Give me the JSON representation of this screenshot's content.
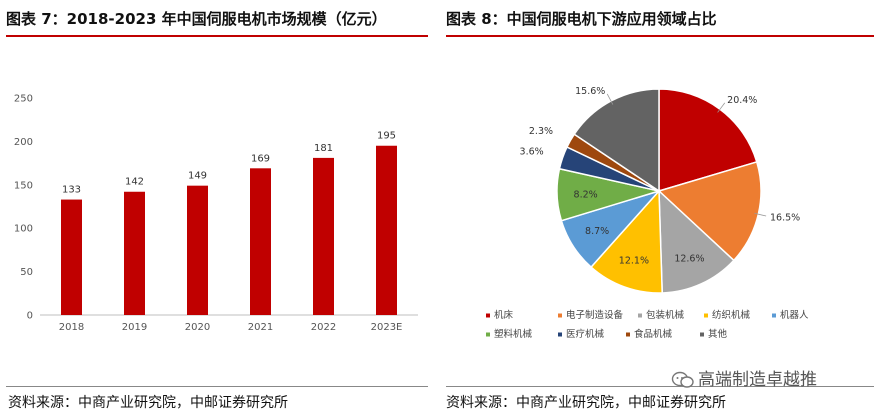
{
  "header": {
    "left_title": "图表 7：2018-2023 年中国伺服电机市场规模（亿元）",
    "right_title": "图表 8：中国伺服电机下游应用领域占比"
  },
  "footer": {
    "left_source": "资料来源：中商产业研究院，中邮证券研究所",
    "right_source": "资料来源：中商产业研究院，中邮证券研究所",
    "watermark": "高端制造卓越推"
  },
  "chart_data": [
    {
      "type": "bar",
      "title": "图表 7：2018-2023 年中国伺服电机市场规模（亿元）",
      "categories": [
        "2018",
        "2019",
        "2020",
        "2021",
        "2022",
        "2023E"
      ],
      "values": [
        133,
        142,
        149,
        169,
        181,
        195
      ],
      "ylim": [
        0,
        250
      ],
      "yticks": [
        0,
        50,
        100,
        150,
        200,
        250
      ],
      "color": "#c00000",
      "grid": false
    },
    {
      "type": "pie",
      "title": "图表 8：中国伺服电机下游应用领域占比",
      "slices": [
        {
          "name": "机床",
          "value": 20.4,
          "label": "20.4%",
          "color": "#c00000"
        },
        {
          "name": "电子制造设备",
          "value": 16.5,
          "label": "16.5%",
          "color": "#ed7d31"
        },
        {
          "name": "包装机械",
          "value": 12.6,
          "label": "12.6%",
          "color": "#a5a5a5"
        },
        {
          "name": "纺织机械",
          "value": 12.1,
          "label": "12.1%",
          "color": "#ffc000"
        },
        {
          "name": "机器人",
          "value": 8.7,
          "label": "8.7%",
          "color": "#5b9bd5"
        },
        {
          "name": "塑料机械",
          "value": 8.2,
          "label": "8.2%",
          "color": "#70ad47"
        },
        {
          "name": "医疗机械",
          "value": 3.6,
          "label": "3.6%",
          "color": "#264478"
        },
        {
          "name": "食品机械",
          "value": 2.3,
          "label": "2.3%",
          "color": "#9e480e"
        },
        {
          "name": "其他",
          "value": 15.6,
          "label": "15.6%",
          "color": "#636363"
        }
      ],
      "legend_position": "bottom"
    }
  ]
}
